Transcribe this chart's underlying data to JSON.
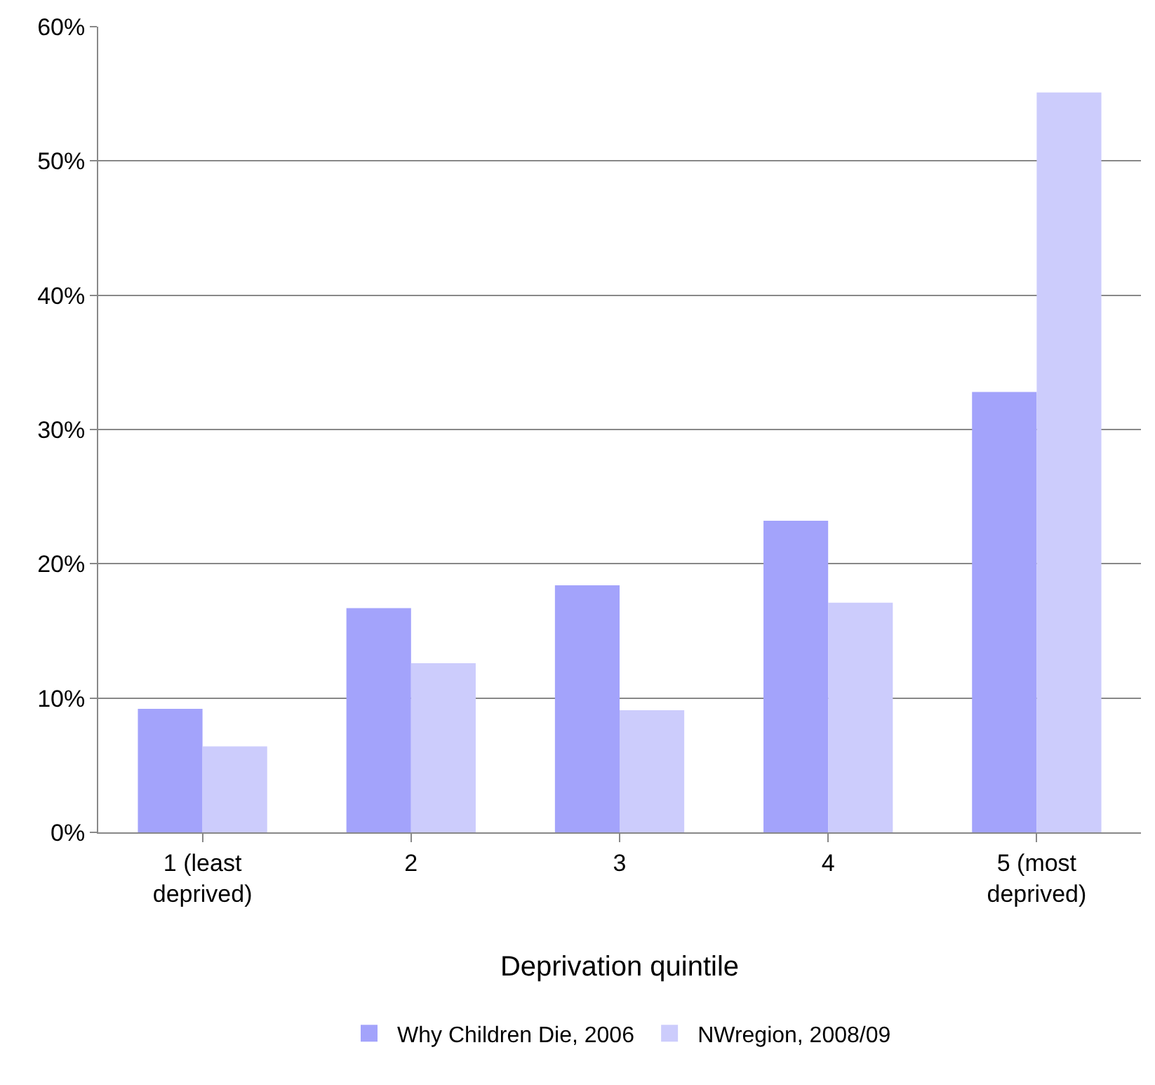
{
  "chart_data": {
    "type": "bar",
    "xlabel": "Deprivation quintile",
    "categories": [
      "1 (least deprived)",
      "2",
      "3",
      "4",
      "5 (most deprived)"
    ],
    "series": [
      {
        "name": "Why Children Die, 2006",
        "color": "#a3a3fb",
        "values": [
          9.2,
          16.7,
          18.4,
          23.2,
          32.8
        ]
      },
      {
        "name": "NWregion, 2008/09",
        "color": "#ccccfc",
        "values": [
          6.4,
          12.6,
          9.1,
          17.1,
          55.1
        ]
      }
    ],
    "ylim": [
      0,
      60
    ],
    "yticks": [
      {
        "value": 0,
        "label": "0%"
      },
      {
        "value": 10,
        "label": "10%"
      },
      {
        "value": 20,
        "label": "20%"
      },
      {
        "value": 30,
        "label": "30%"
      },
      {
        "value": 40,
        "label": "40%"
      },
      {
        "value": 50,
        "label": "50%"
      },
      {
        "value": 60,
        "label": "60%"
      }
    ],
    "grid": "y",
    "legend": "bottom"
  }
}
